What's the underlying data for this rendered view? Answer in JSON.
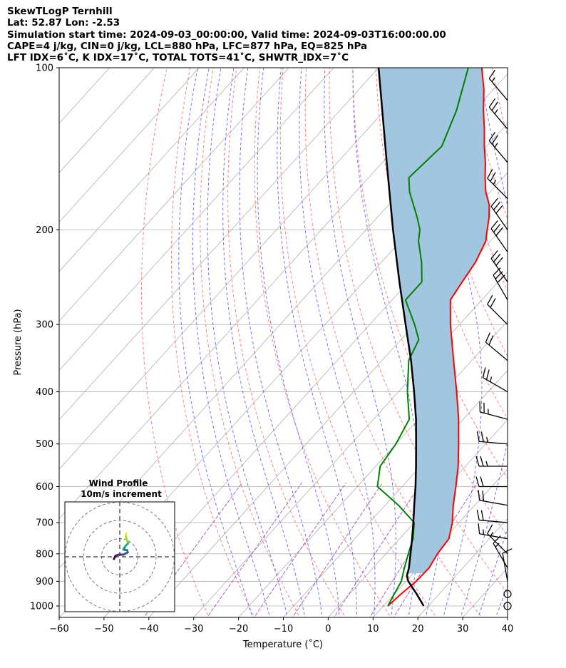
{
  "header": {
    "title": "SkewTLogP Ternhill",
    "location": "Lat: 52.87   Lon: -2.53",
    "times": "Simulation start time: 2024-09-03_00:00:00, Valid time: 2024-09-03T16:00:00.00",
    "indices1": "CAPE=4 j/kg, CIN=0 j/kg, LCL=880 hPa, LFC=877 hPa, EQ=825 hPa",
    "indices2": "LFT IDX=6˚C, K IDX=17˚C, TOTAL TOTS=41˚C, SHWTR_IDX=7˚C"
  },
  "chart_data": {
    "type": "skewt-logp",
    "xlabel": "Temperature (˚C)",
    "ylabel": "Pressure (hPa)",
    "xlim": [
      -60,
      40
    ],
    "ylim": [
      1050,
      100
    ],
    "x_ticks": [
      -60,
      -50,
      -40,
      -30,
      -20,
      -10,
      0,
      10,
      20,
      30,
      40
    ],
    "x_tick_labels": [
      "−60",
      "−50",
      "−40",
      "−30",
      "−20",
      "−10",
      "0",
      "10",
      "20",
      "30",
      "40"
    ],
    "y_ticks": [
      1000,
      900,
      800,
      700,
      600,
      500,
      400,
      300,
      200,
      100
    ],
    "y_tick_labels": [
      "1000",
      "900",
      "800",
      "700",
      "600",
      "500",
      "400",
      "300",
      "200",
      "100"
    ],
    "grid": true,
    "colors": {
      "temperature": "#ff0000",
      "dewpoint": "#008000",
      "parcel": "#000000",
      "cape_fill": "#a3c6e0",
      "dry_adiabat": "#ff6b6b",
      "moist_adiabat": "#5a5aff",
      "mixing_ratio": "#9b45c4",
      "isotherm": "#b0b0b0"
    },
    "temperature": [
      {
        "p": 1000,
        "t": 11
      },
      {
        "p": 950,
        "t": 11.5
      },
      {
        "p": 900,
        "t": 12.3
      },
      {
        "p": 850,
        "t": 12.5
      },
      {
        "p": 800,
        "t": 11.5
      },
      {
        "p": 750,
        "t": 11
      },
      {
        "p": 700,
        "t": 8.5
      },
      {
        "p": 650,
        "t": 5.2
      },
      {
        "p": 600,
        "t": 2
      },
      {
        "p": 550,
        "t": -1.6
      },
      {
        "p": 500,
        "t": -6
      },
      {
        "p": 450,
        "t": -11
      },
      {
        "p": 400,
        "t": -17
      },
      {
        "p": 350,
        "t": -24
      },
      {
        "p": 300,
        "t": -32
      },
      {
        "p": 270,
        "t": -37
      },
      {
        "p": 250,
        "t": -38
      },
      {
        "p": 230,
        "t": -39
      },
      {
        "p": 210,
        "t": -41
      },
      {
        "p": 200,
        "t": -43
      },
      {
        "p": 190,
        "t": -45
      },
      {
        "p": 180,
        "t": -47.5
      },
      {
        "p": 170,
        "t": -51
      },
      {
        "p": 160,
        "t": -54
      },
      {
        "p": 150,
        "t": -57
      },
      {
        "p": 140,
        "t": -60.5
      },
      {
        "p": 130,
        "t": -64
      },
      {
        "p": 120,
        "t": -68
      },
      {
        "p": 110,
        "t": -72
      },
      {
        "p": 100,
        "t": -77
      }
    ],
    "dewpoint": [
      {
        "p": 1000,
        "t": 11
      },
      {
        "p": 950,
        "t": 10
      },
      {
        "p": 900,
        "t": 9
      },
      {
        "p": 850,
        "t": 7
      },
      {
        "p": 800,
        "t": 5
      },
      {
        "p": 750,
        "t": 3
      },
      {
        "p": 700,
        "t": 0
      },
      {
        "p": 650,
        "t": -7
      },
      {
        "p": 600,
        "t": -15.5
      },
      {
        "p": 550,
        "t": -19
      },
      {
        "p": 500,
        "t": -20
      },
      {
        "p": 450,
        "t": -22
      },
      {
        "p": 400,
        "t": -28
      },
      {
        "p": 350,
        "t": -34
      },
      {
        "p": 320,
        "t": -36
      },
      {
        "p": 300,
        "t": -40
      },
      {
        "p": 270,
        "t": -47
      },
      {
        "p": 250,
        "t": -47
      },
      {
        "p": 230,
        "t": -51
      },
      {
        "p": 210,
        "t": -56
      },
      {
        "p": 200,
        "t": -58
      },
      {
        "p": 190,
        "t": -61
      },
      {
        "p": 170,
        "t": -68
      },
      {
        "p": 160,
        "t": -71
      },
      {
        "p": 140,
        "t": -70
      },
      {
        "p": 120,
        "t": -74
      },
      {
        "p": 100,
        "t": -80
      }
    ],
    "parcel": [
      {
        "p": 1000,
        "t": 19
      },
      {
        "p": 950,
        "t": 15
      },
      {
        "p": 900,
        "t": 10.6
      },
      {
        "p": 880,
        "t": 9.2
      },
      {
        "p": 850,
        "t": 8
      },
      {
        "p": 800,
        "t": 5.5
      },
      {
        "p": 750,
        "t": 2.8
      },
      {
        "p": 700,
        "t": -0.2
      },
      {
        "p": 650,
        "t": -3.5
      },
      {
        "p": 600,
        "t": -7
      },
      {
        "p": 550,
        "t": -11
      },
      {
        "p": 500,
        "t": -15.5
      },
      {
        "p": 450,
        "t": -20.5
      },
      {
        "p": 400,
        "t": -26.5
      },
      {
        "p": 350,
        "t": -33.5
      },
      {
        "p": 300,
        "t": -42
      },
      {
        "p": 250,
        "t": -52
      },
      {
        "p": 200,
        "t": -64
      },
      {
        "p": 150,
        "t": -79
      },
      {
        "p": 100,
        "t": -100
      }
    ],
    "wind_barbs": [
      {
        "p": 1000,
        "speed": 0
      },
      {
        "p": 950,
        "speed": 0
      },
      {
        "p": 900,
        "speed": 10,
        "dir": 350
      },
      {
        "p": 850,
        "speed": 15,
        "dir": 330
      },
      {
        "p": 800,
        "speed": 15,
        "dir": 315
      },
      {
        "p": 750,
        "speed": 15,
        "dir": 280
      },
      {
        "p": 700,
        "speed": 20,
        "dir": 275
      },
      {
        "p": 650,
        "speed": 20,
        "dir": 280
      },
      {
        "p": 600,
        "speed": 20,
        "dir": 270
      },
      {
        "p": 550,
        "speed": 25,
        "dir": 270
      },
      {
        "p": 500,
        "speed": 25,
        "dir": 275
      },
      {
        "p": 450,
        "speed": 25,
        "dir": 285
      },
      {
        "p": 400,
        "speed": 25,
        "dir": 300
      },
      {
        "p": 350,
        "speed": 20,
        "dir": 310
      },
      {
        "p": 300,
        "speed": 20,
        "dir": 315
      },
      {
        "p": 270,
        "speed": 30,
        "dir": 330
      },
      {
        "p": 250,
        "speed": 30,
        "dir": 325
      },
      {
        "p": 220,
        "speed": 30,
        "dir": 325
      },
      {
        "p": 200,
        "speed": 30,
        "dir": 325
      },
      {
        "p": 175,
        "speed": 25,
        "dir": 315
      },
      {
        "p": 150,
        "speed": 25,
        "dir": 320
      },
      {
        "p": 130,
        "speed": 25,
        "dir": 320
      },
      {
        "p": 115,
        "speed": 15,
        "dir": 320
      }
    ],
    "hodograph": {
      "title": "Wind Profile",
      "subtitle": "10m/s increment",
      "rings": [
        10,
        20,
        30
      ],
      "trace": [
        {
          "u": -8,
          "v": -3
        },
        {
          "u": -6,
          "v": 1
        },
        {
          "u": -4,
          "v": 2
        },
        {
          "u": -1,
          "v": 3
        },
        {
          "u": 5,
          "v": 3
        },
        {
          "u": 11,
          "v": 6
        },
        {
          "u": 10,
          "v": 9
        },
        {
          "u": 5,
          "v": 10
        },
        {
          "u": 8,
          "v": 15
        },
        {
          "u": 11,
          "v": 18
        },
        {
          "u": 12,
          "v": 20
        },
        {
          "u": 10,
          "v": 22
        },
        {
          "u": 9,
          "v": 26
        },
        {
          "u": 8,
          "v": 30
        },
        {
          "u": 9,
          "v": 32
        }
      ]
    }
  }
}
